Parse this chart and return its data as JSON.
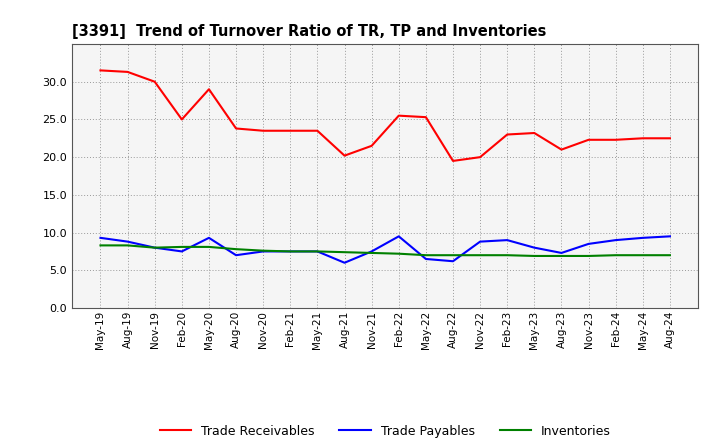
{
  "title": "[3391]  Trend of Turnover Ratio of TR, TP and Inventories",
  "x_labels": [
    "May-19",
    "Aug-19",
    "Nov-19",
    "Feb-20",
    "May-20",
    "Aug-20",
    "Nov-20",
    "Feb-21",
    "May-21",
    "Aug-21",
    "Nov-21",
    "Feb-22",
    "May-22",
    "Aug-22",
    "Nov-22",
    "Feb-23",
    "May-23",
    "Aug-23",
    "Nov-23",
    "Feb-24",
    "May-24",
    "Aug-24"
  ],
  "trade_receivables": [
    31.5,
    31.3,
    30.0,
    25.0,
    29.0,
    23.8,
    23.5,
    23.5,
    23.5,
    20.2,
    21.5,
    25.5,
    25.3,
    19.5,
    20.0,
    23.0,
    23.2,
    21.0,
    22.3,
    22.3,
    22.5,
    22.5
  ],
  "trade_payables": [
    9.3,
    8.8,
    8.0,
    7.5,
    9.3,
    7.0,
    7.5,
    7.5,
    7.5,
    6.0,
    7.5,
    9.5,
    6.5,
    6.2,
    8.8,
    9.0,
    8.0,
    7.3,
    8.5,
    9.0,
    9.3,
    9.5
  ],
  "inventories": [
    8.3,
    8.3,
    8.0,
    8.1,
    8.1,
    7.8,
    7.6,
    7.5,
    7.5,
    7.4,
    7.3,
    7.2,
    7.0,
    7.0,
    7.0,
    7.0,
    6.9,
    6.9,
    6.9,
    7.0,
    7.0,
    7.0
  ],
  "ylim": [
    0,
    35
  ],
  "yticks": [
    0.0,
    5.0,
    10.0,
    15.0,
    20.0,
    25.0,
    30.0
  ],
  "line_colors": {
    "trade_receivables": "#ff0000",
    "trade_payables": "#0000ff",
    "inventories": "#008000"
  },
  "legend_labels": [
    "Trade Receivables",
    "Trade Payables",
    "Inventories"
  ],
  "background_color": "#ffffff",
  "plot_bg_color": "#f5f5f5",
  "grid_color": "#999999"
}
